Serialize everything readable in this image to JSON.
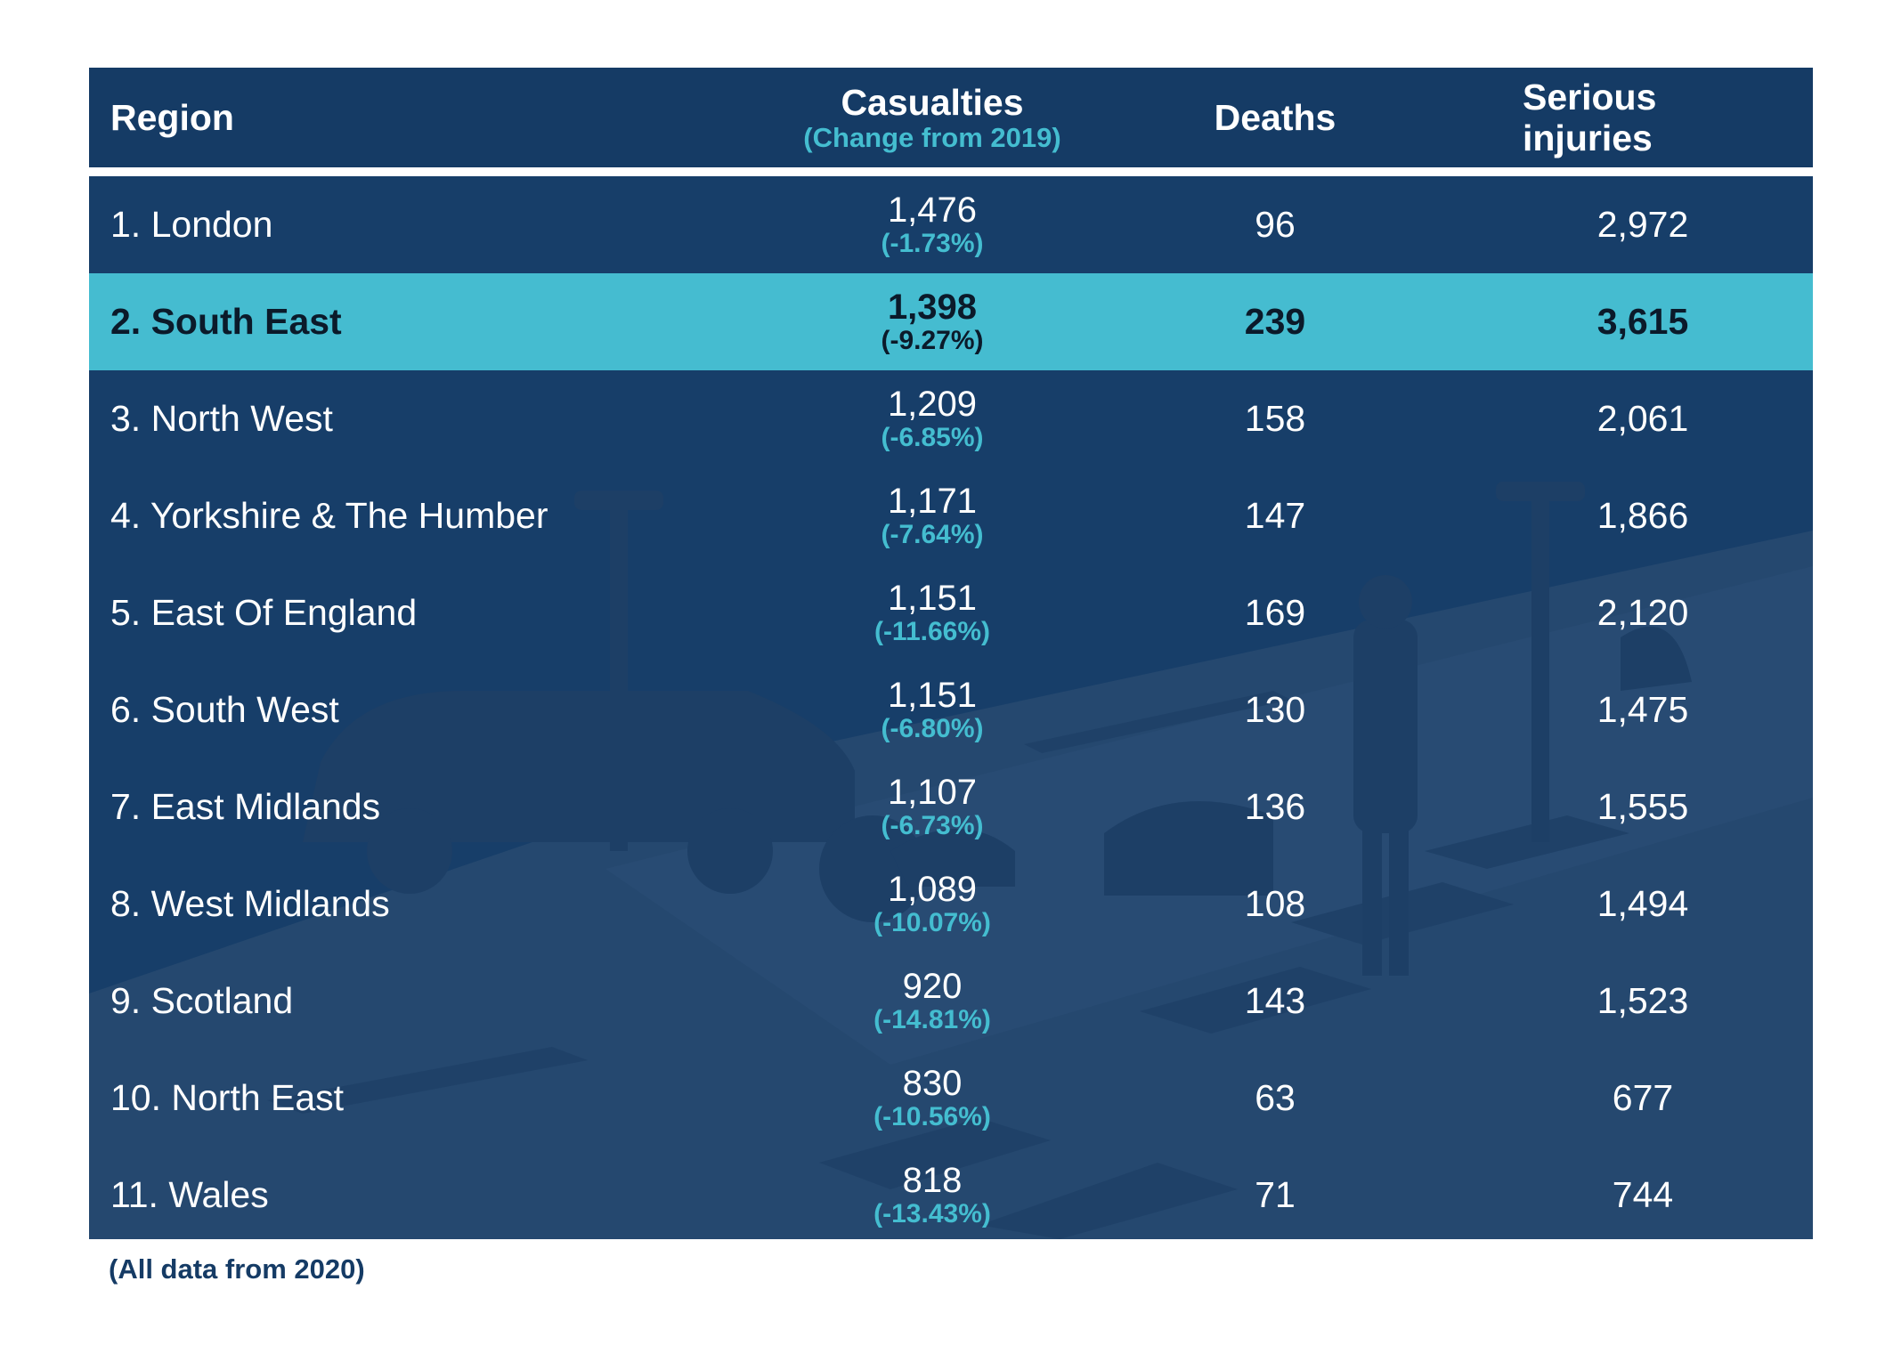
{
  "header": {
    "region": "Region",
    "casualties": "Casualties",
    "casualties_sub": "(Change from 2019)",
    "deaths": "Deaths",
    "serious": "Serious injuries"
  },
  "colors": {
    "panel": "#173e69",
    "header": "#153b65",
    "highlight": "#45bcd0",
    "accent_text": "#44bdd0"
  },
  "chart_data": {
    "type": "table",
    "columns": [
      "Region",
      "Casualties",
      "Change from 2019",
      "Deaths",
      "Serious injuries"
    ],
    "rows": [
      {
        "region": "1. London",
        "casualties": "1,476",
        "change": "(-1.73%)",
        "deaths": "96",
        "serious": "2,972"
      },
      {
        "region": "2. South East",
        "casualties": "1,398",
        "change": "(-9.27%)",
        "deaths": "239",
        "serious": "3,615",
        "highlight": true
      },
      {
        "region": "3. North West",
        "casualties": "1,209",
        "change": "(-6.85%)",
        "deaths": "158",
        "serious": "2,061"
      },
      {
        "region": "4. Yorkshire & The Humber",
        "casualties": "1,171",
        "change": "(-7.64%)",
        "deaths": "147",
        "serious": "1,866"
      },
      {
        "region": "5. East Of England",
        "casualties": "1,151",
        "change": "(-11.66%)",
        "deaths": "169",
        "serious": "2,120"
      },
      {
        "region": "6. South West",
        "casualties": "1,151",
        "change": "(-6.80%)",
        "deaths": "130",
        "serious": "1,475"
      },
      {
        "region": "7. East Midlands",
        "casualties": "1,107",
        "change": "(-6.73%)",
        "deaths": "136",
        "serious": "1,555"
      },
      {
        "region": "8. West Midlands",
        "casualties": "1,089",
        "change": "(-10.07%)",
        "deaths": "108",
        "serious": "1,494"
      },
      {
        "region": "9. Scotland",
        "casualties": "920",
        "change": "(-14.81%)",
        "deaths": "143",
        "serious": "1,523"
      },
      {
        "region": "10. North East",
        "casualties": "830",
        "change": "(-10.56%)",
        "deaths": "63",
        "serious": "677"
      },
      {
        "region": "11. Wales",
        "casualties": "818",
        "change": "(-13.43%)",
        "deaths": "71",
        "serious": "744"
      }
    ]
  },
  "footnote": "(All data from 2020)"
}
